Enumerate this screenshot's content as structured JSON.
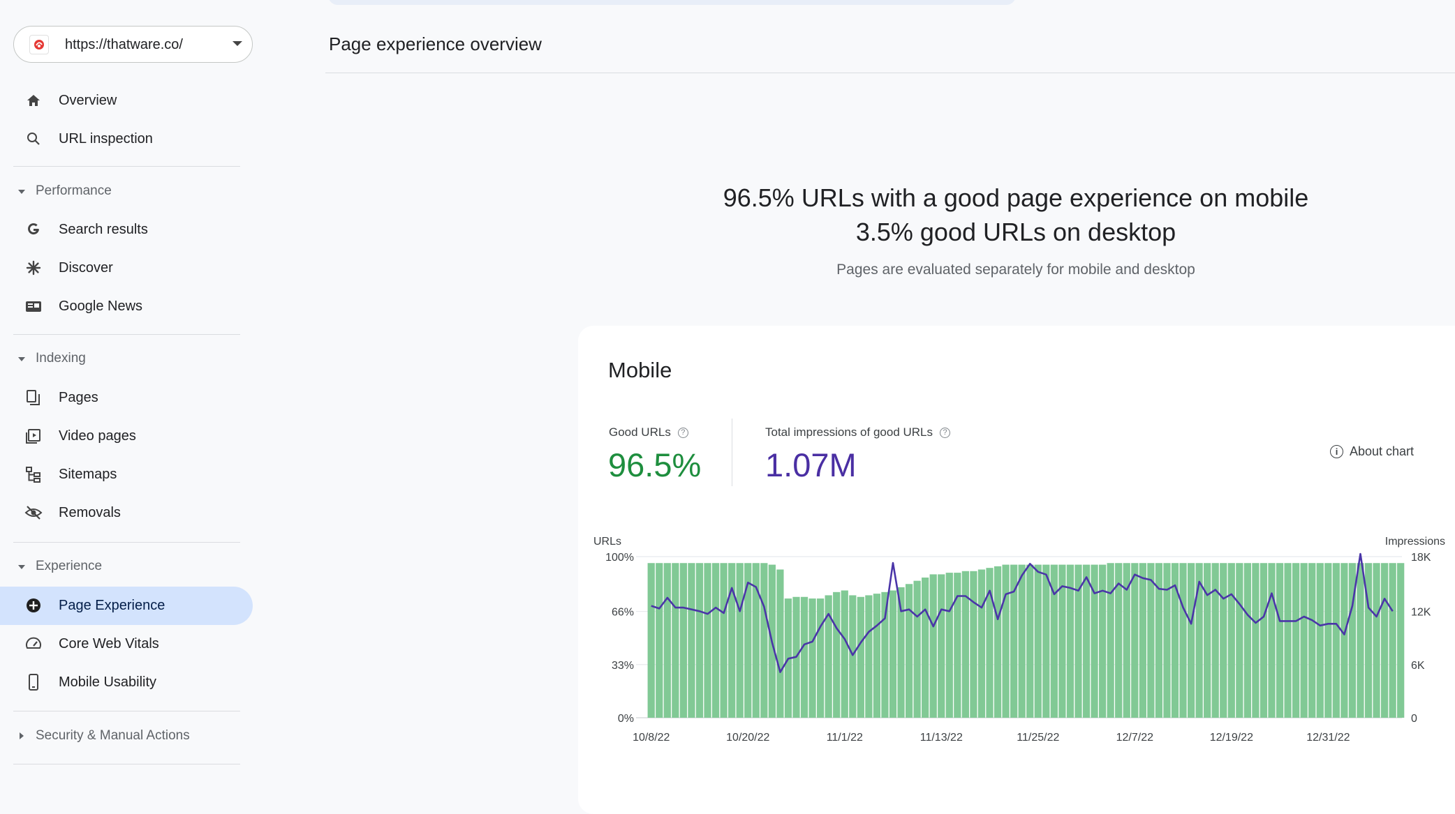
{
  "property": {
    "url": "https://thatware.co/"
  },
  "nav": {
    "top": [
      {
        "id": "overview",
        "label": "Overview",
        "icon": "home-icon"
      },
      {
        "id": "url-inspection",
        "label": "URL inspection",
        "icon": "search-icon"
      }
    ],
    "sections": [
      {
        "id": "performance",
        "label": "Performance",
        "items": [
          {
            "id": "search-results",
            "label": "Search results",
            "icon": "google-g-icon"
          },
          {
            "id": "discover",
            "label": "Discover",
            "icon": "asterisk-icon"
          },
          {
            "id": "google-news",
            "label": "Google News",
            "icon": "news-icon"
          }
        ]
      },
      {
        "id": "indexing",
        "label": "Indexing",
        "items": [
          {
            "id": "pages",
            "label": "Pages",
            "icon": "pages-icon"
          },
          {
            "id": "video-pages",
            "label": "Video pages",
            "icon": "video-pages-icon"
          },
          {
            "id": "sitemaps",
            "label": "Sitemaps",
            "icon": "sitemap-icon"
          },
          {
            "id": "removals",
            "label": "Removals",
            "icon": "eye-off-icon"
          }
        ]
      },
      {
        "id": "experience",
        "label": "Experience",
        "items": [
          {
            "id": "page-experience",
            "label": "Page Experience",
            "icon": "add-circle-icon",
            "active": true
          },
          {
            "id": "core-web-vitals",
            "label": "Core Web Vitals",
            "icon": "speedometer-icon"
          },
          {
            "id": "mobile-usability",
            "label": "Mobile Usability",
            "icon": "smartphone-icon"
          }
        ]
      },
      {
        "id": "security",
        "label": "Security & Manual Actions",
        "collapsed": true,
        "items": []
      }
    ]
  },
  "main": {
    "title": "Page experience overview",
    "summary_line1": "96.5% URLs with a good page experience on mobile",
    "summary_line2": "3.5% good URLs on desktop",
    "summary_sub": "Pages are evaluated separately for mobile and desktop"
  },
  "card": {
    "title": "Mobile",
    "good_urls_label": "Good URLs",
    "good_urls_value": "96.5%",
    "impressions_label": "Total impressions of good URLs",
    "impressions_value": "1.07M",
    "about_label": "About chart",
    "help_glyph": "?",
    "info_glyph": "i"
  },
  "colors": {
    "good_green": "#1e8e3e",
    "impressions_purple": "#4a2fa3",
    "bar_fill": "#81c995",
    "line": "#4a35a8",
    "active_nav_bg": "#d3e3fd"
  },
  "chart_data": {
    "type": "bar",
    "y_left_label": "URLs",
    "y_right_label": "Impressions",
    "y_left_ticks": [
      "100%",
      "66%",
      "33%",
      "0%"
    ],
    "y_right_ticks": [
      "18K",
      "12K",
      "6K",
      "0"
    ],
    "ylim_left": [
      0,
      100
    ],
    "ylim_right": [
      0,
      18000
    ],
    "x_tick_labels": [
      "10/8/22",
      "10/20/22",
      "11/1/22",
      "11/13/22",
      "11/25/22",
      "12/7/22",
      "12/19/22",
      "12/31/22"
    ],
    "x_tick_index": [
      0,
      12,
      24,
      36,
      48,
      60,
      72,
      84
    ],
    "grid": true,
    "series": [
      {
        "name": "Good URLs",
        "type": "bar",
        "axis": "left",
        "values": [
          96,
          96,
          96,
          96,
          96,
          96,
          96,
          96,
          96,
          96,
          96,
          96,
          96,
          96,
          96,
          95,
          92,
          74,
          75,
          75,
          74,
          74,
          76,
          78,
          79,
          76,
          75,
          76,
          77,
          78,
          79,
          81,
          83,
          85,
          87,
          89,
          89,
          90,
          90,
          91,
          91,
          92,
          93,
          94,
          95,
          95,
          95,
          95,
          95,
          95,
          95,
          95,
          95,
          95,
          95,
          95,
          95,
          96,
          96,
          96,
          96,
          96,
          96,
          96,
          96,
          96,
          96,
          96,
          96,
          96,
          96,
          96,
          96,
          96,
          96,
          96,
          96,
          96,
          96,
          96,
          96,
          96,
          96,
          96,
          96,
          96,
          96,
          96,
          96,
          96,
          96,
          96,
          96,
          96
        ]
      },
      {
        "name": "Impressions",
        "type": "line",
        "axis": "right",
        "values": [
          12500,
          12200,
          13400,
          12300,
          12300,
          12100,
          11900,
          11600,
          12300,
          11700,
          14500,
          11900,
          15100,
          14600,
          12400,
          8400,
          5100,
          6600,
          6800,
          8200,
          8500,
          10200,
          11600,
          10000,
          8800,
          7000,
          8400,
          9600,
          10300,
          11100,
          17300,
          11900,
          12100,
          11300,
          12100,
          10200,
          12100,
          11900,
          13600,
          13600,
          12900,
          12300,
          14200,
          11000,
          13800,
          14100,
          15900,
          17200,
          16300,
          16000,
          13800,
          14700,
          14500,
          14200,
          15700,
          13900,
          14200,
          13900,
          15000,
          14300,
          16000,
          15600,
          15400,
          14400,
          14300,
          14800,
          12300,
          10500,
          15200,
          13700,
          14300,
          13300,
          13800,
          12700,
          11500,
          10600,
          11300,
          13900,
          10800,
          10800,
          10800,
          11300,
          10900,
          10300,
          10500,
          10500,
          9300,
          12500,
          18300,
          12300,
          11300,
          13300,
          11900
        ]
      }
    ]
  }
}
